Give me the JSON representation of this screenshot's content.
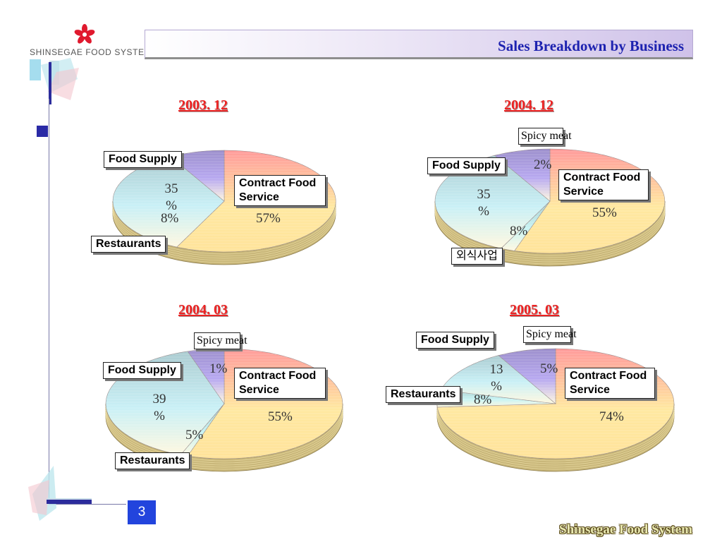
{
  "slide": {
    "title": "Sales Breakdown by Business",
    "logo_text": "SHINSEGAE FOOD SYSTEM",
    "page_number": "3",
    "footer": "Shinsegae Food System"
  },
  "colors": {
    "contract": "#ffe8a0",
    "food_supply": "#c9f0f6",
    "restaurants": "#b7a8f0",
    "spicy_meat": "#c8f4f4"
  },
  "chart_data": [
    {
      "type": "pie",
      "title": "2003. 12",
      "slices": [
        {
          "label": "Contract Food Service",
          "value": 57,
          "value_label": "57%"
        },
        {
          "label": "Food Supply",
          "value": 35,
          "value_label": "35\n%"
        },
        {
          "label": "Restaurants",
          "value": 8,
          "value_label": "8%"
        }
      ]
    },
    {
      "type": "pie",
      "title": "2004. 12",
      "slices": [
        {
          "label": "Contract Food Service",
          "value": 55,
          "value_label": "55%"
        },
        {
          "label": "Spicy meat",
          "value": 2,
          "value_label": "2%"
        },
        {
          "label": "Food Supply",
          "value": 35,
          "value_label": "35\n%"
        },
        {
          "label": "외식사업",
          "value": 8,
          "value_label": "8%"
        }
      ]
    },
    {
      "type": "pie",
      "title": "2004. 03",
      "slices": [
        {
          "label": "Contract Food Service",
          "value": 55,
          "value_label": "55%"
        },
        {
          "label": "Spicy meat",
          "value": 1,
          "value_label": "1%"
        },
        {
          "label": "Food Supply",
          "value": 39,
          "value_label": "39\n%"
        },
        {
          "label": "Restaurants",
          "value": 5,
          "value_label": "5%"
        }
      ]
    },
    {
      "type": "pie",
      "title": "2005. 03",
      "slices": [
        {
          "label": "Contract Food Service",
          "value": 74,
          "value_label": "74%"
        },
        {
          "label": "Spicy meat",
          "value": 5,
          "value_label": "5%"
        },
        {
          "label": "Food Supply",
          "value": 13,
          "value_label": "13\n%"
        },
        {
          "label": "Restaurants",
          "value": 8,
          "value_label": "8%"
        }
      ]
    }
  ]
}
